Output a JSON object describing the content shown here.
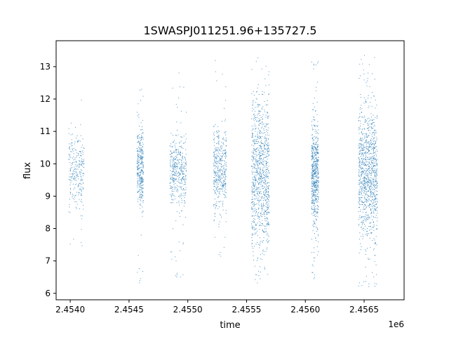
{
  "chart_data": {
    "type": "scatter",
    "title": "1SWASPJ011251.96+135727.5",
    "xlabel": "time",
    "ylabel": "flux",
    "x_offset_label": "1e6",
    "xlim": [
      2453830,
      2456790
    ],
    "ylim": [
      5.8,
      13.8
    ],
    "x_ticks": [
      2453950,
      2454450,
      2454950,
      2455450,
      2455950,
      2456450
    ],
    "x_tick_labels": [
      "2.4540",
      "2.4545",
      "2.4550",
      "2.4555",
      "2.4560",
      "2.4565"
    ],
    "y_ticks": [
      6,
      7,
      8,
      9,
      10,
      11,
      12,
      13
    ],
    "y_tick_labels": [
      "6",
      "7",
      "8",
      "9",
      "10",
      "11",
      "12",
      "13"
    ],
    "grid": false,
    "marker_color": "#1f77b4",
    "marker": "point",
    "clusters": [
      {
        "x_range": [
          2453935,
          2454065
        ],
        "density": 260,
        "y_core": [
          8.8,
          10.8
        ],
        "y_extent": [
          7.1,
          12.0
        ]
      },
      {
        "x_range": [
          2454515,
          2454570
        ],
        "density": 340,
        "y_core": [
          8.8,
          10.9
        ],
        "y_extent": [
          6.3,
          12.5
        ]
      },
      {
        "x_range": [
          2454795,
          2454935
        ],
        "density": 420,
        "y_core": [
          8.9,
          10.7
        ],
        "y_extent": [
          6.2,
          12.9
        ]
      },
      {
        "x_range": [
          2455165,
          2455275
        ],
        "density": 420,
        "y_core": [
          8.7,
          10.9
        ],
        "y_extent": [
          6.9,
          13.4
        ]
      },
      {
        "x_range": [
          2455490,
          2455640
        ],
        "density": 950,
        "y_core": [
          7.6,
          11.8
        ],
        "y_extent": [
          6.2,
          13.4
        ]
      },
      {
        "x_range": [
          2456000,
          2456060
        ],
        "density": 600,
        "y_core": [
          8.4,
          11.0
        ],
        "y_extent": [
          6.3,
          13.2
        ]
      },
      {
        "x_range": [
          2456400,
          2456560
        ],
        "density": 1050,
        "y_core": [
          8.0,
          11.5
        ],
        "y_extent": [
          6.2,
          13.4
        ]
      }
    ]
  }
}
